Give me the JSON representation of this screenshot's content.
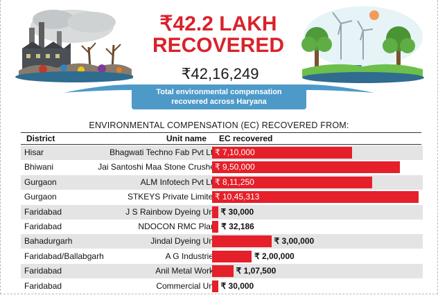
{
  "headline": {
    "line1": "₹42.2 LAKH",
    "line2": "RECOVERED"
  },
  "total": {
    "amount": "₹42,16,249",
    "caption_line1": "Total environmental compensation",
    "caption_line2": "recovered across Haryana"
  },
  "table_title": "ENVIRONMENTAL COMPENSATION (EC) RECOVERED FROM:",
  "columns": {
    "district": "District",
    "unit": "Unit name",
    "ec": "EC recovered"
  },
  "colors": {
    "accent": "#d9222a",
    "bar": "#e5202a",
    "banner": "#4d9ac9"
  },
  "icons": [
    "polluted-factory-illustration-icon",
    "green-energy-landscape-illustration-icon"
  ],
  "chart_data": {
    "type": "bar",
    "orientation": "horizontal",
    "title": "ENVIRONMENTAL COMPENSATION (EC) RECOVERED FROM:",
    "xlabel": "",
    "ylabel": "",
    "xlim": [
      0,
      1045313
    ],
    "rows": [
      {
        "district": "Hisar",
        "unit": "Bhagwati Techno Fab Pvt Ltd",
        "label": "₹ 7,10,000",
        "value": 710000
      },
      {
        "district": "Bhiwani",
        "unit": "Jai Santoshi Maa Stone Crusher",
        "label": "₹ 9,50,000",
        "value": 950000
      },
      {
        "district": "Gurgaon",
        "unit": "ALM Infotech Pvt Ltd",
        "label": "₹ 8,11,250",
        "value": 811250
      },
      {
        "district": "Gurgaon",
        "unit": "STKEYS Private Limited",
        "label": "₹ 10,45,313",
        "value": 1045313
      },
      {
        "district": "Faridabad",
        "unit": "J S Rainbow Dyeing Unit",
        "label": "₹ 30,000",
        "value": 30000
      },
      {
        "district": "Faridabad",
        "unit": "NDOCON RMC Plant",
        "label": "₹ 32,186",
        "value": 32186
      },
      {
        "district": "Bahadurgarh",
        "unit": "Jindal Dyeing Unit",
        "label": "₹ 3,00,000",
        "value": 300000
      },
      {
        "district": "Faridabad/Ballabgarh",
        "unit": "A G Industries",
        "label": "₹ 2,00,000",
        "value": 200000
      },
      {
        "district": "Faridabad",
        "unit": "Anil Metal Works",
        "label": "₹ 1,07,500",
        "value": 107500
      },
      {
        "district": "Faridabad",
        "unit": "Commercial Unit",
        "label": "₹ 30,000",
        "value": 30000
      }
    ]
  }
}
